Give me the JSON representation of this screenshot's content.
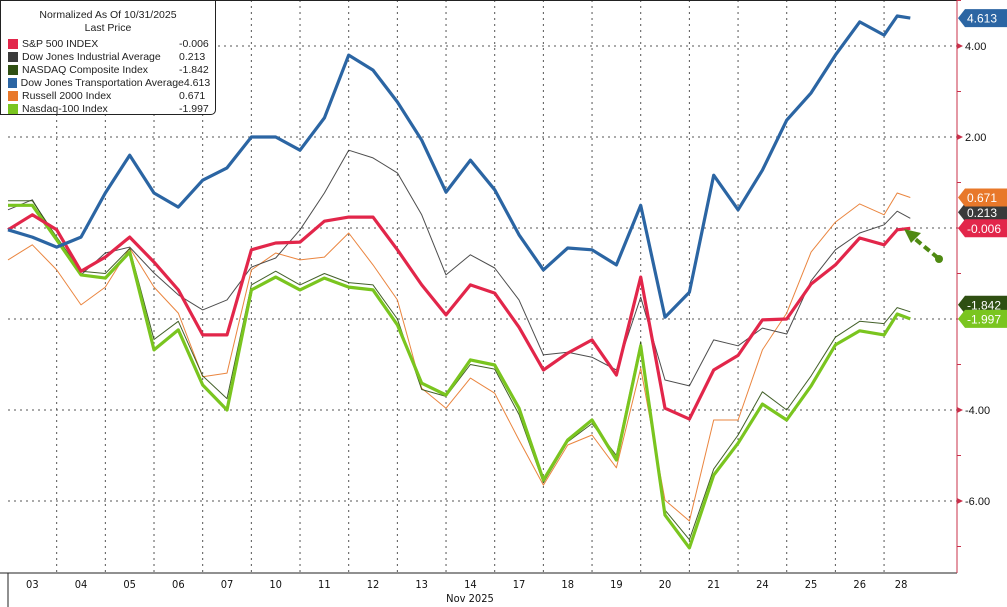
{
  "legend": {
    "title": "Normalized As Of 10/31/2025",
    "subtitle": "Last Price"
  },
  "chart_data": {
    "type": "line",
    "title": "Normalized As Of 10/31/2025",
    "subtitle": "Last Price",
    "xlabel": "Nov 2025",
    "ylabel": "",
    "ylim": [
      -7.5,
      5.0
    ],
    "y_ticks": [
      "4.00",
      "2.00",
      "-4.00",
      "-6.00"
    ],
    "y_tick_values": [
      4,
      2,
      -4,
      -6
    ],
    "gridlines": [
      4,
      2,
      0,
      -2,
      -4,
      -6
    ],
    "grid": true,
    "legend_position": "top-left",
    "x_categories": [
      "03",
      "04",
      "05",
      "06",
      "07",
      "10",
      "11",
      "12",
      "13",
      "14",
      "17",
      "18",
      "19",
      "20",
      "21",
      "24",
      "25",
      "26",
      "28"
    ],
    "x": [
      "03 09:30",
      "03 12:45",
      "04 09:30",
      "04 12:45",
      "05 09:30",
      "05 12:45",
      "06 09:30",
      "06 12:45",
      "07 09:30",
      "07 12:45",
      "10 09:30",
      "10 12:45",
      "11 09:30",
      "11 12:45",
      "12 09:30",
      "12 12:45",
      "13 09:30",
      "13 12:45",
      "14 09:30",
      "14 12:45",
      "17 09:30",
      "17 12:45",
      "18 09:30",
      "18 12:45",
      "19 09:30",
      "19 12:45",
      "20 09:30",
      "20 12:45",
      "21 09:30",
      "21 12:45",
      "24 09:30",
      "24 12:45",
      "25 09:30",
      "25 12:45",
      "26 09:30",
      "26 12:45",
      "28 09:30",
      "28 11:15",
      "28 13:00"
    ],
    "series": [
      {
        "name": "S&P 500 INDEX",
        "last": "-0.006",
        "color": "#e2264a",
        "width": 3.2,
        "values": [
          -0.04,
          0.29,
          -0.04,
          -0.95,
          -0.64,
          -0.2,
          -0.75,
          -1.36,
          -2.35,
          -2.35,
          -0.48,
          -0.33,
          -0.31,
          0.15,
          0.24,
          0.24,
          -0.48,
          -1.25,
          -1.91,
          -1.25,
          -1.43,
          -2.18,
          -3.12,
          -2.75,
          -2.46,
          -3.23,
          -1.08,
          -3.96,
          -4.2,
          -3.12,
          -2.8,
          -2.02,
          -2.0,
          -1.23,
          -0.81,
          -0.22,
          -0.37,
          -0.04,
          -0.006
        ]
      },
      {
        "name": "Dow Jones Industrial Average",
        "last": "0.213",
        "color": "#3a3a3a",
        "width": 1,
        "values": [
          0.4,
          0.62,
          -0.26,
          -1.03,
          -0.55,
          -0.42,
          -0.99,
          -1.47,
          -1.8,
          -1.58,
          -0.86,
          -0.66,
          -0.04,
          0.77,
          1.71,
          1.54,
          1.21,
          0.29,
          -1.03,
          -0.59,
          -0.88,
          -1.58,
          -2.79,
          -2.73,
          -2.84,
          -3.12,
          -1.52,
          -3.34,
          -3.47,
          -2.46,
          -2.59,
          -2.2,
          -2.33,
          -1.16,
          -0.48,
          -0.11,
          0.07,
          0.37,
          0.213
        ]
      },
      {
        "name": "NASDAQ Composite Index",
        "last": "-1.842",
        "color": "#2f4f12",
        "width": 1,
        "values": [
          0.6,
          0.6,
          -0.2,
          -0.95,
          -1.0,
          -0.45,
          -2.45,
          -2.05,
          -3.25,
          -3.75,
          -1.25,
          -0.95,
          -1.25,
          -1.0,
          -1.2,
          -1.25,
          -2.0,
          -3.55,
          -3.7,
          -3.0,
          -3.1,
          -4.1,
          -5.6,
          -4.7,
          -4.3,
          -5.0,
          -2.5,
          -6.2,
          -6.85,
          -5.3,
          -4.55,
          -3.6,
          -4.0,
          -3.25,
          -2.4,
          -2.05,
          -2.1,
          -1.75,
          -1.842
        ]
      },
      {
        "name": "Dow Jones Transportation Average",
        "last": "4.613",
        "color": "#2b65a3",
        "width": 3.2,
        "values": [
          -0.04,
          -0.2,
          -0.42,
          -0.2,
          0.77,
          1.6,
          0.77,
          0.46,
          1.05,
          1.32,
          2.0,
          2.0,
          1.71,
          2.42,
          3.8,
          3.47,
          2.77,
          1.93,
          0.79,
          1.49,
          0.84,
          -0.15,
          -0.92,
          -0.44,
          -0.48,
          -0.81,
          0.5,
          -1.96,
          -1.41,
          1.16,
          0.4,
          1.27,
          2.37,
          2.97,
          3.8,
          4.53,
          4.24,
          4.66,
          4.613
        ]
      },
      {
        "name": "Russell 2000 Index",
        "last": "0.671",
        "color": "#e8782a",
        "width": 1,
        "values": [
          -0.7,
          -0.37,
          -0.92,
          -1.69,
          -1.3,
          -0.44,
          -1.3,
          -1.87,
          -3.27,
          -3.19,
          -0.92,
          -0.55,
          -0.7,
          -0.64,
          -0.11,
          -0.81,
          -1.58,
          -3.52,
          -3.96,
          -3.3,
          -3.63,
          -4.66,
          -5.65,
          -4.77,
          -4.55,
          -5.27,
          -3.08,
          -5.98,
          -6.44,
          -4.22,
          -4.22,
          -2.68,
          -1.87,
          -0.53,
          0.13,
          0.53,
          0.29,
          0.77,
          0.671
        ]
      },
      {
        "name": "Nasdaq-100 Index",
        "last": "-1.997",
        "color": "#7ac51f",
        "width": 3.2,
        "values": [
          0.5,
          0.5,
          -0.26,
          -1.03,
          -1.1,
          -0.53,
          -2.68,
          -2.24,
          -3.45,
          -4.0,
          -1.36,
          -1.08,
          -1.36,
          -1.1,
          -1.3,
          -1.36,
          -2.13,
          -3.41,
          -3.67,
          -2.9,
          -3.01,
          -3.96,
          -5.54,
          -4.66,
          -4.22,
          -5.1,
          -2.59,
          -6.31,
          -7.03,
          -5.43,
          -4.73,
          -3.87,
          -4.22,
          -3.47,
          -2.57,
          -2.26,
          -2.35,
          -1.89,
          -1.997
        ]
      }
    ],
    "annotation": {
      "type": "dashed-arrow",
      "color": "#4f8a12",
      "points_to": "S&P 500 INDEX last value"
    }
  }
}
